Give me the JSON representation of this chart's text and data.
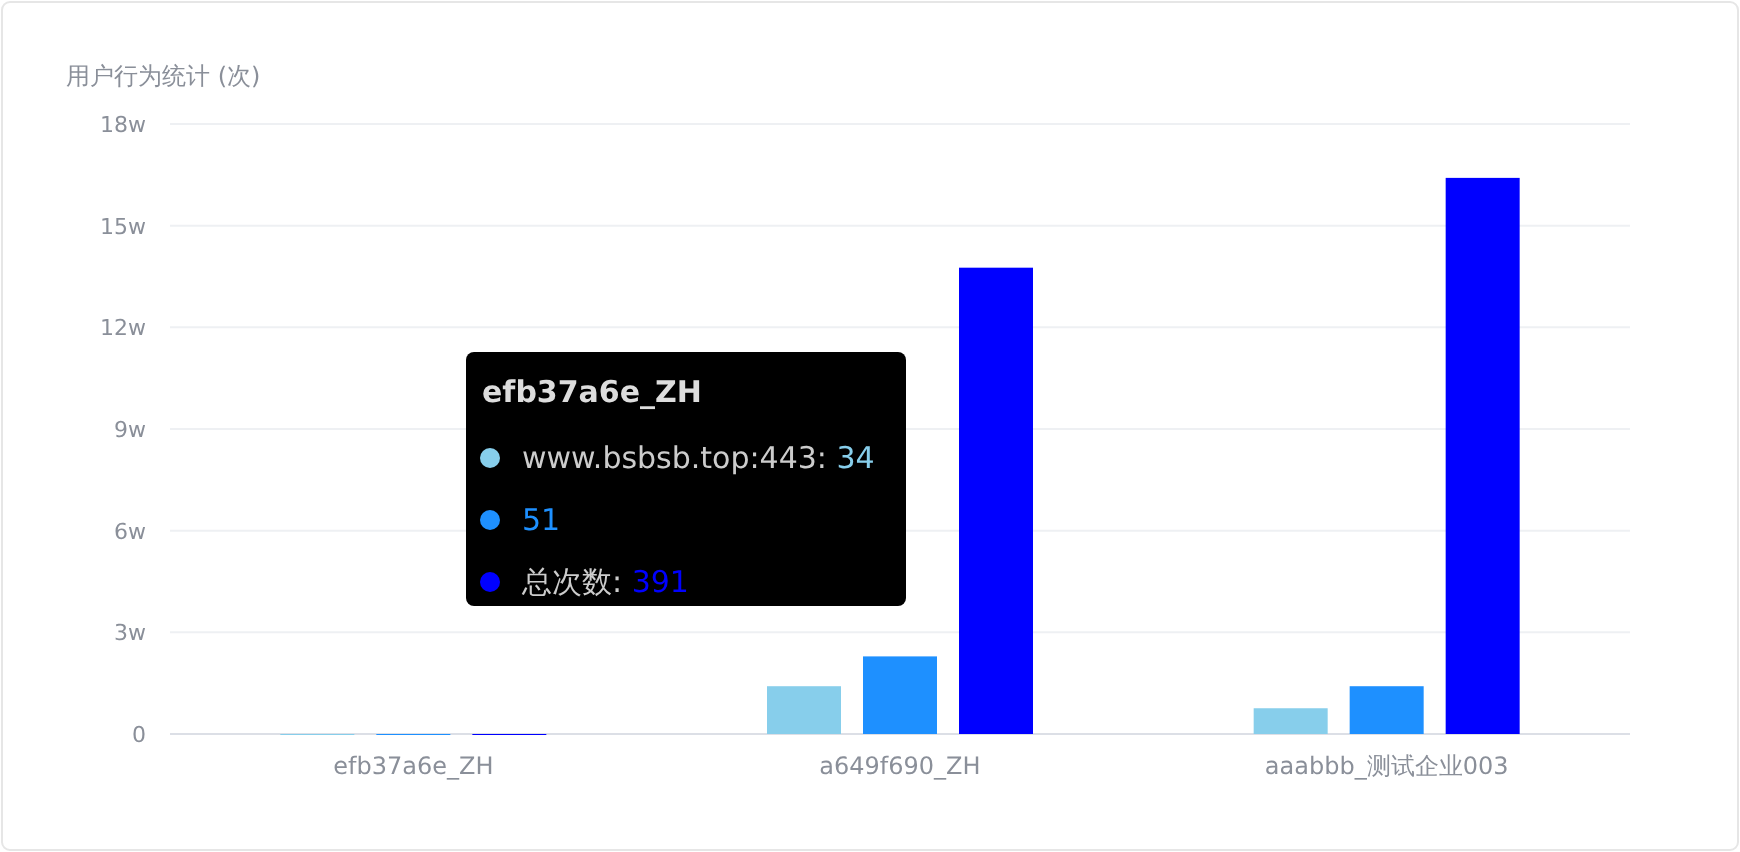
{
  "chart_data": {
    "type": "bar",
    "ylabel": "用户行为统计 (次)",
    "categories": [
      "efb37a6e_ZH",
      "a649f690_ZH",
      "aaabbb_测试企业003"
    ],
    "series": [
      {
        "name": "www.bsbsb.top:443:",
        "color": "#87ceeb",
        "values": [
          0,
          1.41,
          0.76
        ]
      },
      {
        "color": "#1e90ff",
        "values": [
          0,
          2.29,
          1.41
        ]
      },
      {
        "name": "总次数:",
        "color": "#0000ff",
        "values": [
          0,
          13.76,
          16.41
        ]
      }
    ],
    "annotations": [
      "efb37a6e_ZH",
      "34",
      "51",
      "391"
    ],
    "legend": "center",
    "ylim": [
      0,
      18
    ],
    "yticks": [
      0,
      {
        "value": 3,
        "label": "3w"
      },
      {
        "value": 6,
        "label": "6w"
      },
      {
        "value": 9,
        "label": "9w"
      },
      {
        "value": 12,
        "label": "12w"
      },
      {
        "value": 15,
        "label": "15w"
      },
      {
        "value": 18,
        "label": "18w"
      }
    ],
    "grid": "y"
  }
}
